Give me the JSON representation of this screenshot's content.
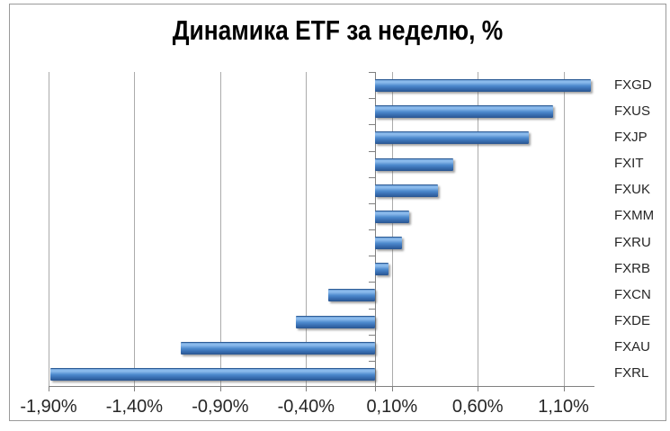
{
  "title": "Динамика ETF за неделю, %",
  "chart_data": {
    "type": "bar",
    "orientation": "horizontal",
    "title": "Динамика ETF за неделю, %",
    "categories": [
      "FXGD",
      "FXUS",
      "FXJP",
      "FXIT",
      "FXUK",
      "FXMM",
      "FXRU",
      "FXRB",
      "FXCN",
      "FXDE",
      "FXAU",
      "FXRL"
    ],
    "values": [
      1.26,
      1.04,
      0.9,
      0.46,
      0.37,
      0.2,
      0.16,
      0.08,
      -0.27,
      -0.46,
      -1.13,
      -1.89
    ],
    "unit": "%",
    "x_tick_labels": [
      "-1,90%",
      "-1,40%",
      "-0,90%",
      "-0,40%",
      "0,10%",
      "0,60%",
      "1,10%"
    ],
    "x_tick_values": [
      -1.9,
      -1.4,
      -0.9,
      -0.4,
      0.1,
      0.6,
      1.1
    ],
    "xlim": [
      -1.9,
      1.28
    ],
    "grid": "vertical-only",
    "legend": "none",
    "category_labels_position": "right",
    "colors": {
      "bar_edge": "#2E5D97",
      "bar_highlight": "#89B9EB",
      "bar_mid": "#4E8BCE",
      "bar_mid2": "#3A70B4",
      "bar_dark": "#2A5590",
      "gridline": "#ABABAB",
      "axis": "#808080",
      "text": "#262626",
      "title_text": "#000000"
    }
  }
}
